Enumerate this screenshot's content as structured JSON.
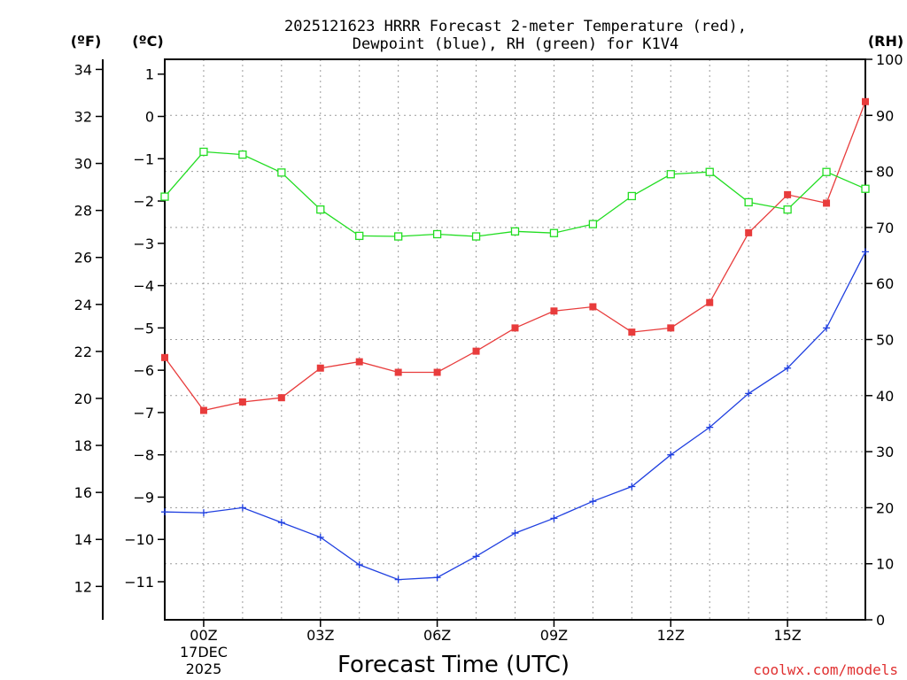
{
  "chart_data": {
    "type": "line",
    "title_line1": "2025121623 HRRR Forecast 2-meter Temperature (red),",
    "title_line2": "Dewpoint (blue), RH (green) for K1V4",
    "units": {
      "fahrenheit": "(ºF)",
      "celsius": "(ºC)",
      "rh": "(RH)"
    },
    "xlabel": "Forecast Time (UTC)",
    "credit": "coolwx.com/models",
    "x_range": [
      -1,
      17
    ],
    "x_ticks": [
      {
        "hour": 0,
        "label": "00Z",
        "date_line1": "17DEC",
        "date_line2": "2025"
      },
      {
        "hour": 3,
        "label": "03Z"
      },
      {
        "hour": 6,
        "label": "06Z"
      },
      {
        "hour": 9,
        "label": "09Z"
      },
      {
        "hour": 12,
        "label": "12Z"
      },
      {
        "hour": 15,
        "label": "15Z"
      }
    ],
    "celsius_axis": {
      "min": -11.9,
      "max": 1.35,
      "ticks": [
        "1",
        "0",
        "−1",
        "−2",
        "−3",
        "−4",
        "−5",
        "−6",
        "−7",
        "−8",
        "−9",
        "−10",
        "−11"
      ]
    },
    "fahrenheit_axis": {
      "ticks": [
        "34",
        "32",
        "30",
        "28",
        "26",
        "24",
        "22",
        "20",
        "18",
        "16",
        "14",
        "12"
      ]
    },
    "rh_axis": {
      "min": 0,
      "max": 100,
      "ticks": [
        "100",
        "90",
        "80",
        "70",
        "60",
        "50",
        "40",
        "30",
        "20",
        "10",
        "0"
      ]
    },
    "series": [
      {
        "name": "Temperature",
        "axis": "celsius",
        "color": "#e83c3c",
        "marker": "filled-square",
        "x": [
          -1,
          0,
          1,
          2,
          3,
          4,
          5,
          6,
          7,
          8,
          9,
          10,
          11,
          12,
          13,
          14,
          15,
          16,
          17
        ],
        "values": [
          -5.7,
          -6.95,
          -6.75,
          -6.65,
          -5.95,
          -5.8,
          -6.05,
          -6.05,
          -5.55,
          -5.0,
          -4.6,
          -4.5,
          -5.1,
          -5.0,
          -4.4,
          -2.75,
          -1.85,
          -2.05,
          0.35
        ]
      },
      {
        "name": "Dewpoint",
        "axis": "celsius",
        "color": "#2040e0",
        "marker": "plus",
        "x": [
          -1,
          0,
          1,
          2,
          3,
          4,
          5,
          6,
          7,
          8,
          9,
          10,
          11,
          12,
          13,
          14,
          15,
          16,
          17
        ],
        "values": [
          -9.35,
          -9.37,
          -9.25,
          -9.6,
          -9.95,
          -10.6,
          -10.95,
          -10.9,
          -10.4,
          -9.85,
          -9.5,
          -9.1,
          -8.75,
          -8.0,
          -7.35,
          -6.55,
          -5.95,
          -5.0,
          -3.2
        ]
      },
      {
        "name": "RH",
        "axis": "rh",
        "color": "#22dd22",
        "marker": "open-square",
        "x": [
          -1,
          0,
          1,
          2,
          3,
          4,
          5,
          6,
          7,
          8,
          9,
          10,
          11,
          12,
          13,
          14,
          15,
          16,
          17
        ],
        "values": [
          75.5,
          83.5,
          83.0,
          79.8,
          73.2,
          68.5,
          68.4,
          68.8,
          68.4,
          69.3,
          69.0,
          70.6,
          75.6,
          79.5,
          79.9,
          74.5,
          73.2,
          79.9,
          76.9
        ]
      }
    ]
  }
}
